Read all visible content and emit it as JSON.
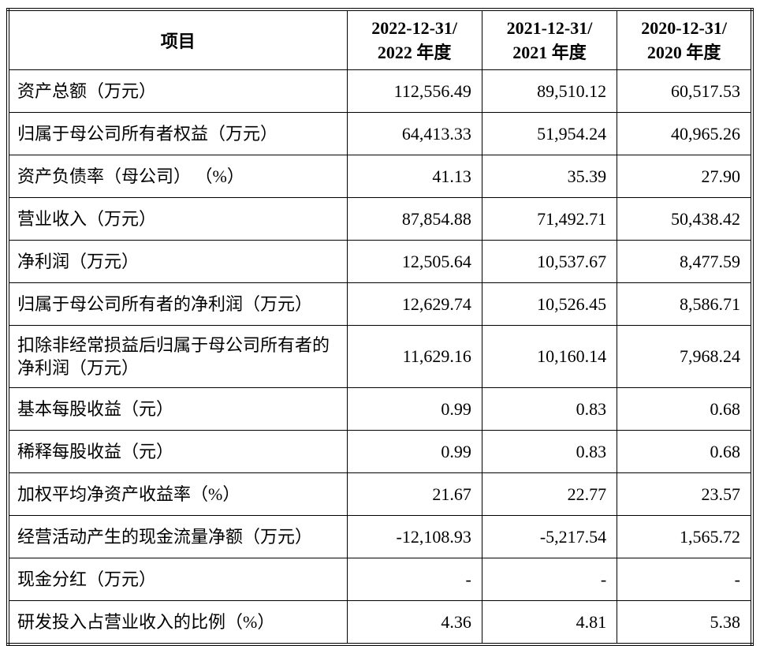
{
  "table": {
    "columns": {
      "item": "项目",
      "periods": [
        {
          "line1": "2022-12-31/",
          "line2": "2022 年度"
        },
        {
          "line1": "2021-12-31/",
          "line2": "2021 年度"
        },
        {
          "line1": "2020-12-31/",
          "line2": "2020 年度"
        }
      ]
    },
    "rows": [
      {
        "label": "资产总额（万元）",
        "values": [
          "112,556.49",
          "89,510.12",
          "60,517.53"
        ],
        "tall": false
      },
      {
        "label": "归属于母公司所有者权益（万元）",
        "values": [
          "64,413.33",
          "51,954.24",
          "40,965.26"
        ],
        "tall": false
      },
      {
        "label": "资产负债率（母公司） （%）",
        "values": [
          "41.13",
          "35.39",
          "27.90"
        ],
        "tall": false
      },
      {
        "label": "营业收入（万元）",
        "values": [
          "87,854.88",
          "71,492.71",
          "50,438.42"
        ],
        "tall": false
      },
      {
        "label": "净利润（万元）",
        "values": [
          "12,505.64",
          "10,537.67",
          "8,477.59"
        ],
        "tall": false
      },
      {
        "label": "归属于母公司所有者的净利润（万元）",
        "values": [
          "12,629.74",
          "10,526.45",
          "8,586.71"
        ],
        "tall": false
      },
      {
        "label": "扣除非经常损益后归属于母公司所有者的净利润（万元）",
        "values": [
          "11,629.16",
          "10,160.14",
          "7,968.24"
        ],
        "tall": true
      },
      {
        "label": "基本每股收益（元）",
        "values": [
          "0.99",
          "0.83",
          "0.68"
        ],
        "tall": false
      },
      {
        "label": "稀释每股收益（元）",
        "values": [
          "0.99",
          "0.83",
          "0.68"
        ],
        "tall": false
      },
      {
        "label": "加权平均净资产收益率（%）",
        "values": [
          "21.67",
          "22.77",
          "23.57"
        ],
        "tall": false
      },
      {
        "label": "经营活动产生的现金流量净额（万元）",
        "values": [
          "-12,108.93",
          "-5,217.54",
          "1,565.72"
        ],
        "tall": false
      },
      {
        "label": "现金分红（万元）",
        "values": [
          "-",
          "-",
          "-"
        ],
        "tall": false
      },
      {
        "label": "研发投入占营业收入的比例（%）",
        "values": [
          "4.36",
          "4.81",
          "5.38"
        ],
        "tall": false
      }
    ]
  }
}
